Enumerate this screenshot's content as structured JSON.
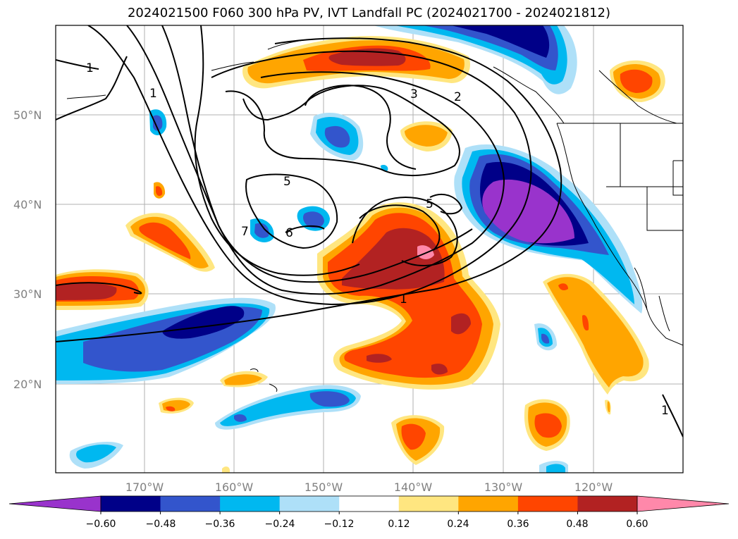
{
  "title": "2024021500 F060 300 hPa PV, IVT Landfall PC (2024021700 - 2024021812)",
  "lat_labels": [
    "50°N",
    "40°N",
    "30°N",
    "20°N"
  ],
  "lon_labels": [
    "170°W",
    "160°W",
    "150°W",
    "140°W",
    "130°W",
    "120°W"
  ],
  "colorbar": {
    "ticks": [
      "−0.60",
      "−0.48",
      "−0.36",
      "−0.24",
      "−0.12",
      "0.12",
      "0.24",
      "0.36",
      "0.48",
      "0.60"
    ],
    "colors": [
      "#9933cc",
      "#000088",
      "#3355cc",
      "#00b8f0",
      "#aee0f8",
      "#ffffff",
      "#ffe680",
      "#ffa500",
      "#ff4500",
      "#b22222",
      "#ff88aa"
    ]
  },
  "contour_labels": [
    "1",
    "1",
    "2",
    "3",
    "5",
    "5",
    "6",
    "7",
    "1",
    "1"
  ]
}
